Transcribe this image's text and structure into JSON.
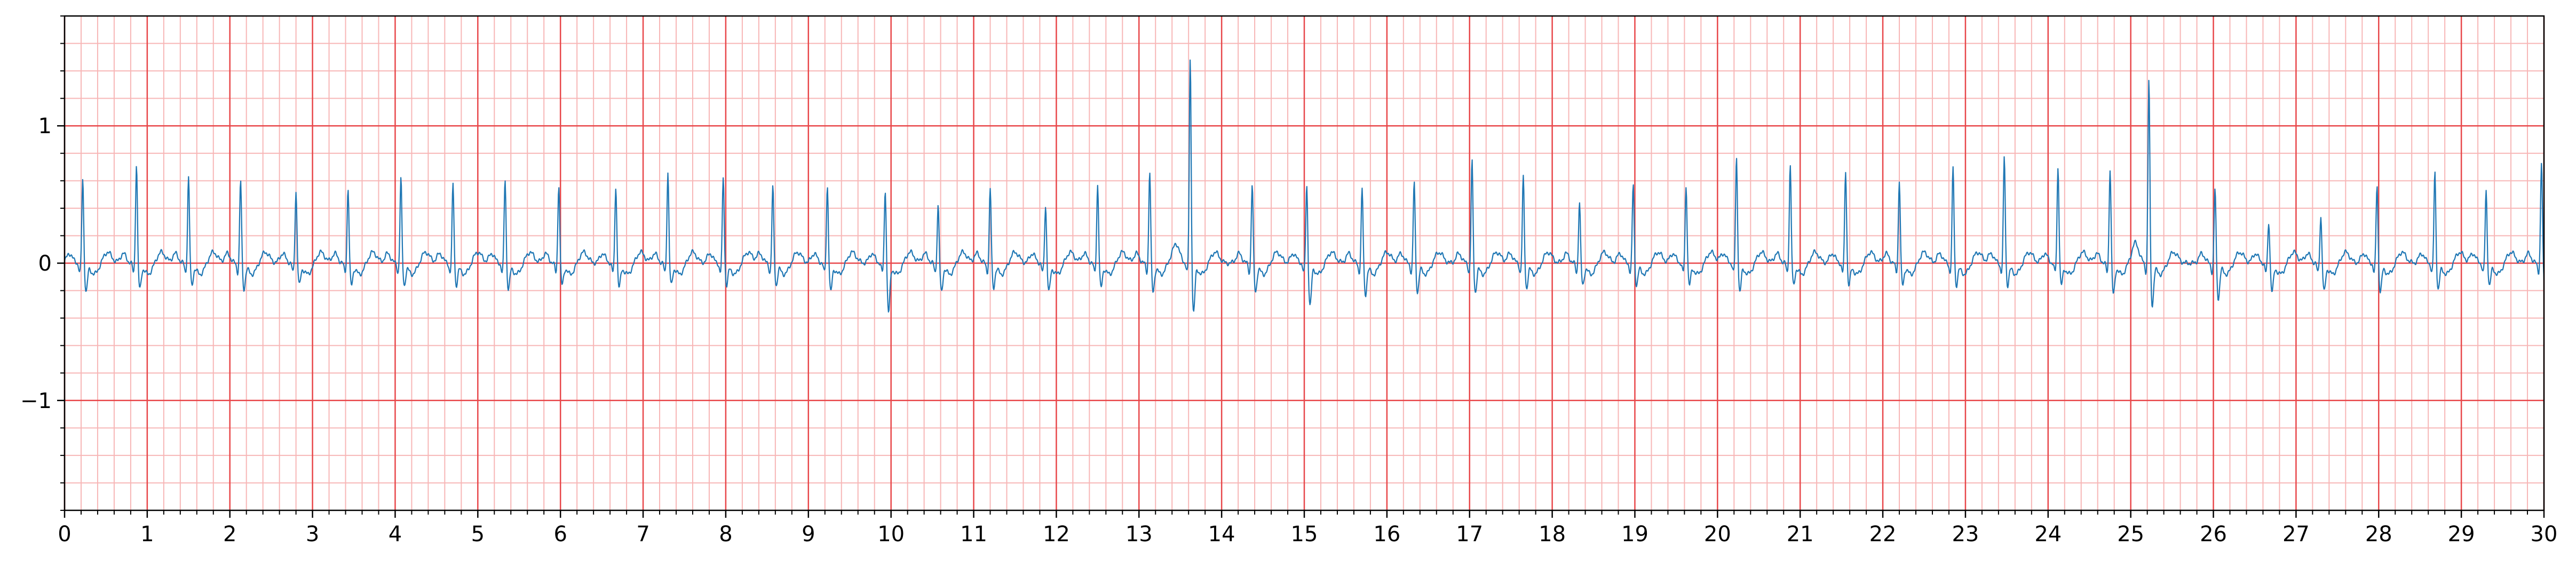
{
  "chart_data": {
    "type": "line",
    "title": "",
    "xlabel": "",
    "ylabel": "",
    "xlim": [
      0,
      30
    ],
    "ylim": [
      -1.8,
      1.8
    ],
    "x_ticks": [
      0,
      1,
      2,
      3,
      4,
      5,
      6,
      7,
      8,
      9,
      10,
      11,
      12,
      13,
      14,
      15,
      16,
      17,
      18,
      19,
      20,
      21,
      22,
      23,
      24,
      25,
      26,
      27,
      28,
      29,
      30
    ],
    "x_tick_labels": [
      "0",
      "1",
      "2",
      "3",
      "4",
      "5",
      "6",
      "7",
      "8",
      "9",
      "10",
      "11",
      "12",
      "13",
      "14",
      "15",
      "16",
      "17",
      "18",
      "19",
      "20",
      "21",
      "22",
      "23",
      "24",
      "25",
      "26",
      "27",
      "28",
      "29",
      "30"
    ],
    "y_ticks": [
      -1,
      0,
      1
    ],
    "y_tick_labels": [
      "−1",
      "0",
      "1"
    ],
    "grid": {
      "major_color": "#e8474a",
      "minor_color": "#f7b6b6",
      "major_x_step": 1,
      "minor_x_step": 0.2,
      "major_y_step": 1,
      "minor_y_step": 0.2
    },
    "series": [
      {
        "color": "#1f77b4",
        "beat_times": [
          0.22,
          0.87,
          1.5,
          2.13,
          2.8,
          3.43,
          4.07,
          4.7,
          5.33,
          5.98,
          6.67,
          7.3,
          7.97,
          8.57,
          9.23,
          9.93,
          10.57,
          11.2,
          11.87,
          12.5,
          13.13,
          13.62,
          14.37,
          15.03,
          15.7,
          16.33,
          17.03,
          17.65,
          18.33,
          18.98,
          19.62,
          20.23,
          20.88,
          21.55,
          22.2,
          22.85,
          23.47,
          24.12,
          24.75,
          25.22,
          26.02,
          26.67,
          27.3,
          27.98,
          28.68,
          29.3,
          29.97
        ],
        "r_peak_amplitudes": [
          0.62,
          0.73,
          0.63,
          0.61,
          0.53,
          0.55,
          0.62,
          0.58,
          0.62,
          0.58,
          0.57,
          0.67,
          0.63,
          0.56,
          0.57,
          0.55,
          0.43,
          0.55,
          0.43,
          0.58,
          0.68,
          1.5,
          0.58,
          0.58,
          0.55,
          0.6,
          0.75,
          0.63,
          0.45,
          0.58,
          0.57,
          0.78,
          0.72,
          0.68,
          0.61,
          0.7,
          0.78,
          0.71,
          0.7,
          1.35,
          0.55,
          0.31,
          0.35,
          0.58,
          0.67,
          0.53,
          0.74
        ],
        "s_trough_amplitudes": [
          -0.2,
          -0.18,
          -0.15,
          -0.18,
          -0.15,
          -0.15,
          -0.15,
          -0.15,
          -0.18,
          -0.15,
          -0.17,
          -0.15,
          -0.15,
          -0.15,
          -0.2,
          -0.35,
          -0.2,
          -0.17,
          -0.2,
          -0.17,
          -0.2,
          -0.35,
          -0.2,
          -0.3,
          -0.22,
          -0.2,
          -0.2,
          -0.17,
          -0.15,
          -0.15,
          -0.15,
          -0.2,
          -0.15,
          -0.15,
          -0.15,
          -0.15,
          -0.15,
          -0.15,
          -0.22,
          -0.3,
          -0.25,
          -0.2,
          -0.2,
          -0.2,
          -0.18,
          -0.15,
          -0.17
        ],
        "baseline": 0.0
      }
    ]
  }
}
